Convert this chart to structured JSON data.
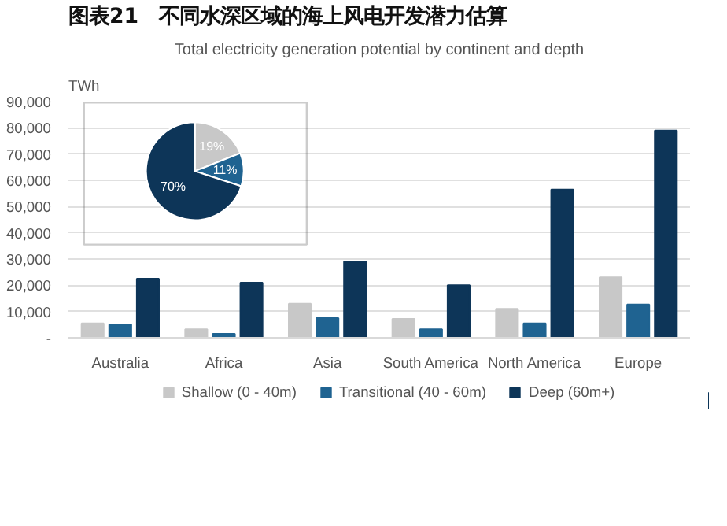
{
  "chart_data": [
    {
      "type": "bar",
      "title": "图表21　不同水深区域的海上风电开发潜力估算",
      "subtitle": "Total electricity generation potential by continent and depth",
      "ylabel": "TWh",
      "categories": [
        "Australia",
        "Africa",
        "Asia",
        "South America",
        "North America",
        "Europe"
      ],
      "series": [
        {
          "name": "Shallow (0 - 40m)",
          "color": "#c8c8c8",
          "values": [
            5500,
            3200,
            13000,
            7200,
            11000,
            23000
          ]
        },
        {
          "name": "Transitional (40 - 60m)",
          "color": "#1f6391",
          "values": [
            5000,
            1500,
            7500,
            3200,
            5500,
            12700
          ]
        },
        {
          "name": "Deep (60m+)",
          "color": "#0d3558",
          "values": [
            22500,
            21000,
            29000,
            20000,
            56500,
            79000
          ]
        }
      ],
      "ylim": [
        0,
        90000
      ],
      "yticks": [
        {
          "value": 0,
          "label": "-"
        },
        {
          "value": 10000,
          "label": "10,000"
        },
        {
          "value": 20000,
          "label": "20,000"
        },
        {
          "value": 30000,
          "label": "30,000"
        },
        {
          "value": 40000,
          "label": "40,000"
        },
        {
          "value": 50000,
          "label": "50,000"
        },
        {
          "value": 60000,
          "label": "60,000"
        },
        {
          "value": 70000,
          "label": "70,000"
        },
        {
          "value": 80000,
          "label": "80,000"
        },
        {
          "value": 90000,
          "label": "90,000"
        }
      ],
      "grid": "y",
      "legend": "bottom"
    },
    {
      "type": "pie",
      "categories": [
        null,
        null,
        null
      ],
      "values": [
        19,
        11,
        70
      ],
      "colors": [
        "#c8c8c8",
        "#1f6391",
        "#0d3558"
      ],
      "value_labels": [
        "19%",
        "11%",
        "70%"
      ]
    }
  ]
}
